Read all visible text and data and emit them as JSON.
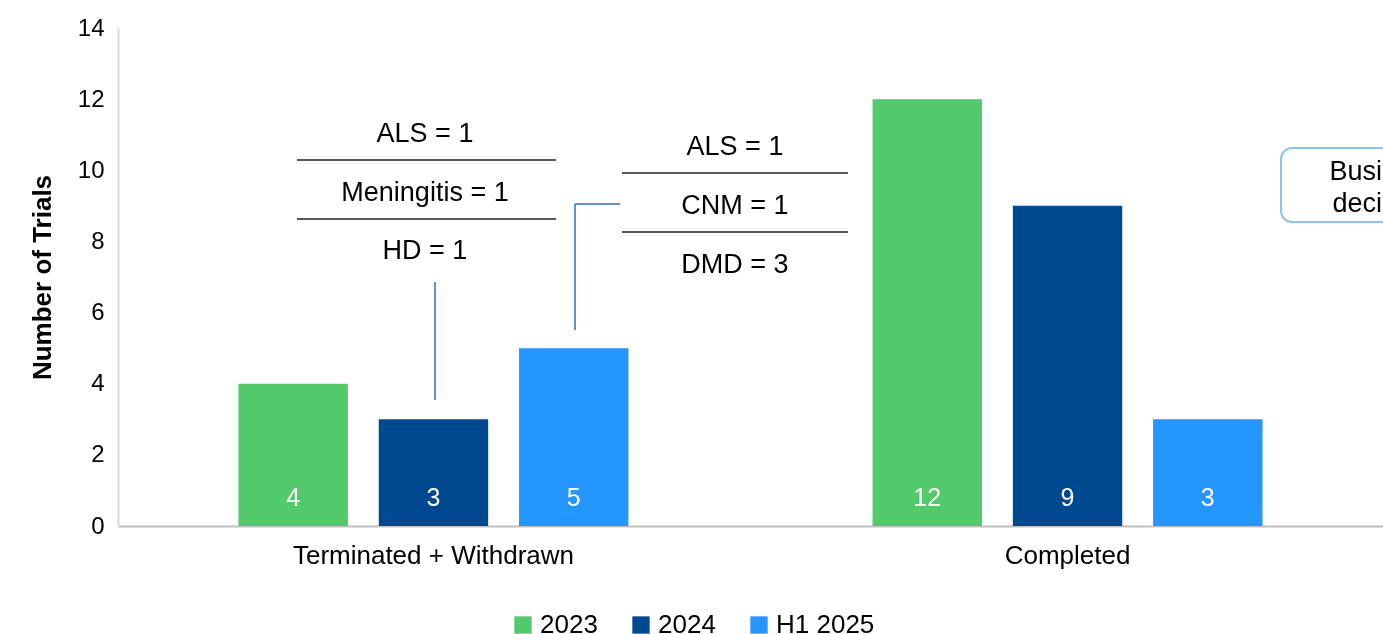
{
  "chart_data": {
    "type": "bar",
    "ylabel": "Number of Trials",
    "categories": [
      "Terminated + Withdrawn",
      "Completed"
    ],
    "series": [
      {
        "name": "2023",
        "color": "#52c96a",
        "values": [
          4,
          12
        ]
      },
      {
        "name": "2024",
        "color": "#00488f",
        "values": [
          3,
          9
        ]
      },
      {
        "name": "H1 2025",
        "color": "#2595ff",
        "values": [
          5,
          3
        ]
      }
    ],
    "ylim": [
      0,
      14
    ],
    "yticks": [
      0,
      2,
      4,
      6,
      8,
      10,
      12,
      14
    ],
    "grid": false,
    "legend": "bottom",
    "data_labels": true,
    "annotations": [
      "ALS = 1",
      "Meningitis = 1",
      "HD = 1",
      "ALS = 1",
      "CNM = 1",
      "DMD = 3",
      "Busi\ndeci"
    ]
  }
}
